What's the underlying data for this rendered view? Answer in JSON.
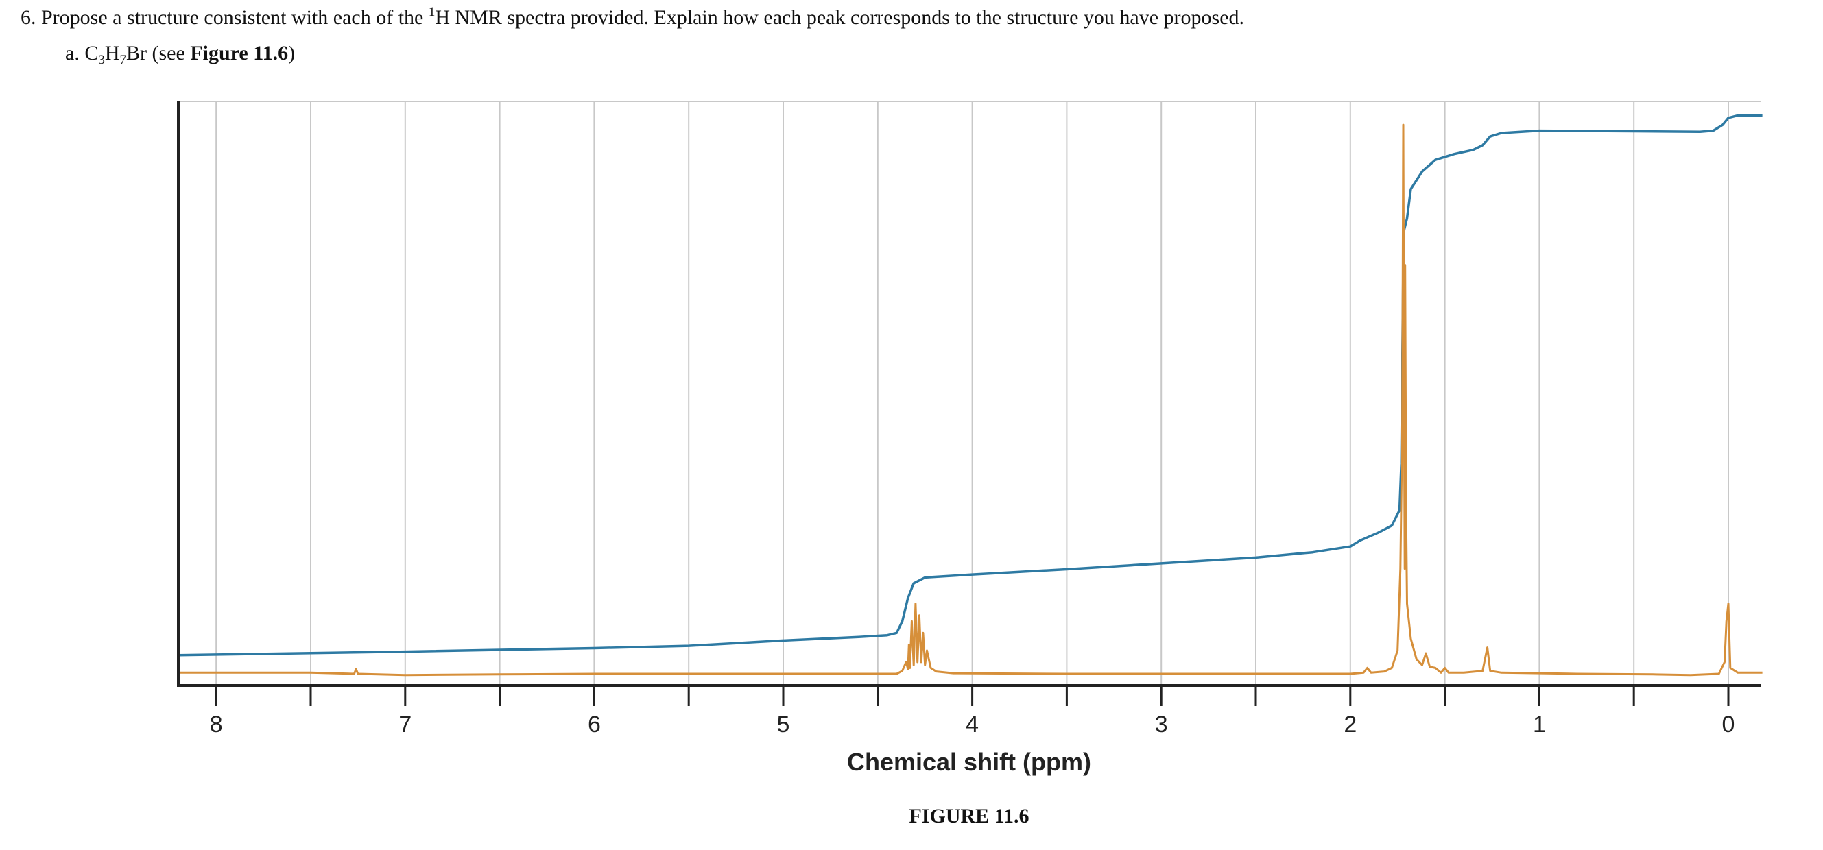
{
  "question": {
    "number": "6.",
    "text_before": " Propose a structure consistent with each of the ",
    "superscript": "1",
    "text_after": "H NMR spectra provided. Explain how each peak corresponds to the structure you have proposed."
  },
  "subquestion": {
    "label": "a. ",
    "formula_c": "C",
    "formula_c_sub": "3",
    "formula_h": "H",
    "formula_h_sub": "7",
    "formula_br": "Br",
    "see_prefix": " (see ",
    "figure_ref": "Figure 11.6",
    "see_suffix": ")"
  },
  "caption": "FIGURE 11.6",
  "colors": {
    "spectrum": "#d68f3a",
    "integral": "#2e7aa3",
    "grid": "#c8c8c8",
    "axis": "#222222"
  },
  "chart_data": {
    "type": "line",
    "title": "",
    "xlabel": "Chemical shift (ppm)",
    "ylabel": "",
    "xlim": [
      8.2,
      -0.18
    ],
    "x_reversed": true,
    "ylim": [
      0,
      1
    ],
    "grid": "vertical",
    "x_ticks": [
      {
        "value": 8,
        "label": "8"
      },
      {
        "value": 7.5,
        "label": ""
      },
      {
        "value": 7,
        "label": "7"
      },
      {
        "value": 6.5,
        "label": ""
      },
      {
        "value": 6,
        "label": "6"
      },
      {
        "value": 5.5,
        "label": ""
      },
      {
        "value": 5,
        "label": "5"
      },
      {
        "value": 4.5,
        "label": ""
      },
      {
        "value": 4,
        "label": "4"
      },
      {
        "value": 3.5,
        "label": ""
      },
      {
        "value": 3,
        "label": "3"
      },
      {
        "value": 2.5,
        "label": ""
      },
      {
        "value": 2,
        "label": "2"
      },
      {
        "value": 1.5,
        "label": ""
      },
      {
        "value": 1,
        "label": "1"
      },
      {
        "value": 0.5,
        "label": ""
      },
      {
        "value": 0,
        "label": "0"
      }
    ],
    "series": [
      {
        "kind": "spectrum",
        "points": [
          [
            8.2,
            0.022
          ],
          [
            7.5,
            0.022
          ],
          [
            7.27,
            0.02
          ],
          [
            7.26,
            0.028
          ],
          [
            7.25,
            0.02
          ],
          [
            7.0,
            0.018
          ],
          [
            6.5,
            0.019
          ],
          [
            6.0,
            0.02
          ],
          [
            5.0,
            0.02
          ],
          [
            4.6,
            0.02
          ],
          [
            4.4,
            0.02
          ],
          [
            4.37,
            0.025
          ],
          [
            4.35,
            0.04
          ],
          [
            4.34,
            0.028
          ],
          [
            4.335,
            0.07
          ],
          [
            4.33,
            0.03
          ],
          [
            4.32,
            0.11
          ],
          [
            4.31,
            0.035
          ],
          [
            4.3,
            0.14
          ],
          [
            4.29,
            0.04
          ],
          [
            4.28,
            0.12
          ],
          [
            4.27,
            0.04
          ],
          [
            4.26,
            0.09
          ],
          [
            4.25,
            0.035
          ],
          [
            4.24,
            0.06
          ],
          [
            4.22,
            0.03
          ],
          [
            4.19,
            0.024
          ],
          [
            4.1,
            0.021
          ],
          [
            3.5,
            0.02
          ],
          [
            3.0,
            0.02
          ],
          [
            2.5,
            0.02
          ],
          [
            2.0,
            0.02
          ],
          [
            1.93,
            0.022
          ],
          [
            1.91,
            0.03
          ],
          [
            1.89,
            0.022
          ],
          [
            1.82,
            0.024
          ],
          [
            1.78,
            0.03
          ],
          [
            1.75,
            0.06
          ],
          [
            1.735,
            0.2
          ],
          [
            1.725,
            0.45
          ],
          [
            1.72,
            0.96
          ],
          [
            1.715,
            0.45
          ],
          [
            1.712,
            0.2
          ],
          [
            1.71,
            0.72
          ],
          [
            1.705,
            0.3
          ],
          [
            1.7,
            0.14
          ],
          [
            1.68,
            0.08
          ],
          [
            1.65,
            0.045
          ],
          [
            1.62,
            0.035
          ],
          [
            1.6,
            0.055
          ],
          [
            1.58,
            0.032
          ],
          [
            1.55,
            0.03
          ],
          [
            1.52,
            0.022
          ],
          [
            1.5,
            0.03
          ],
          [
            1.48,
            0.022
          ],
          [
            1.4,
            0.022
          ],
          [
            1.3,
            0.025
          ],
          [
            1.275,
            0.065
          ],
          [
            1.26,
            0.025
          ],
          [
            1.2,
            0.022
          ],
          [
            0.8,
            0.02
          ],
          [
            0.4,
            0.019
          ],
          [
            0.2,
            0.018
          ],
          [
            0.05,
            0.02
          ],
          [
            0.02,
            0.04
          ],
          [
            0.01,
            0.11
          ],
          [
            0.0,
            0.14
          ],
          [
            -0.01,
            0.03
          ],
          [
            -0.05,
            0.022
          ],
          [
            -0.18,
            0.022
          ]
        ]
      },
      {
        "kind": "integral",
        "points": [
          [
            8.2,
            0.052
          ],
          [
            7.0,
            0.058
          ],
          [
            6.0,
            0.064
          ],
          [
            5.5,
            0.068
          ],
          [
            5.0,
            0.077
          ],
          [
            4.6,
            0.083
          ],
          [
            4.45,
            0.086
          ],
          [
            4.4,
            0.09
          ],
          [
            4.37,
            0.11
          ],
          [
            4.34,
            0.15
          ],
          [
            4.31,
            0.175
          ],
          [
            4.25,
            0.185
          ],
          [
            4.0,
            0.19
          ],
          [
            3.5,
            0.199
          ],
          [
            3.0,
            0.209
          ],
          [
            2.5,
            0.219
          ],
          [
            2.2,
            0.228
          ],
          [
            2.0,
            0.238
          ],
          [
            1.95,
            0.248
          ],
          [
            1.85,
            0.262
          ],
          [
            1.78,
            0.274
          ],
          [
            1.74,
            0.3
          ],
          [
            1.73,
            0.38
          ],
          [
            1.725,
            0.55
          ],
          [
            1.72,
            0.72
          ],
          [
            1.715,
            0.78
          ],
          [
            1.7,
            0.8
          ],
          [
            1.68,
            0.85
          ],
          [
            1.62,
            0.88
          ],
          [
            1.55,
            0.9
          ],
          [
            1.45,
            0.91
          ],
          [
            1.35,
            0.917
          ],
          [
            1.3,
            0.925
          ],
          [
            1.26,
            0.94
          ],
          [
            1.2,
            0.946
          ],
          [
            1.0,
            0.95
          ],
          [
            0.5,
            0.949
          ],
          [
            0.15,
            0.948
          ],
          [
            0.08,
            0.95
          ],
          [
            0.03,
            0.96
          ],
          [
            0.0,
            0.972
          ],
          [
            -0.05,
            0.976
          ],
          [
            -0.18,
            0.976
          ]
        ]
      }
    ]
  }
}
